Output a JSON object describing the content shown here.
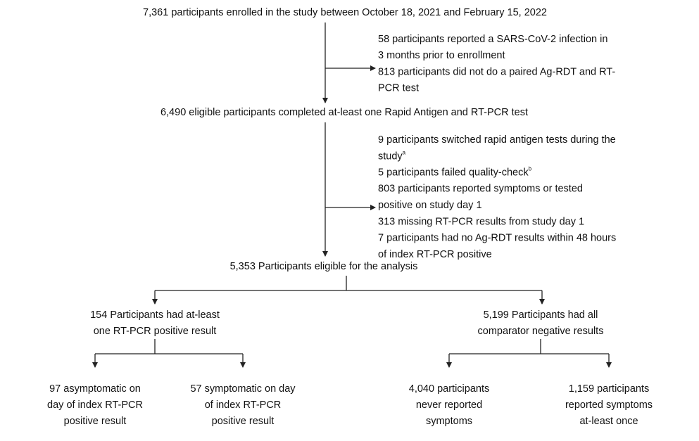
{
  "enrolled": {
    "lines": [
      "7,361 participants enrolled in the study between October 18, 2021 and February 15, 2022"
    ]
  },
  "exclusions_1": {
    "lines": [
      "58 participants reported a SARS-CoV-2 infection in",
      "3 months prior to enrollment",
      "813 participants did not do a paired Ag-RDT and RT-",
      "PCR test"
    ]
  },
  "eligible_tested": {
    "lines": [
      "6,490 eligible participants completed at-least one Rapid Antigen and RT-PCR test"
    ]
  },
  "exclusions_2": {
    "lines": [
      "9 participants switched rapid antigen tests during the",
      "study",
      "5 participants failed quality-check",
      "803 participants reported symptoms or tested",
      "positive on study day 1",
      "313 missing RT-PCR results from study day 1",
      "7 participants had no Ag-RDT results within 48 hours",
      "of index RT-PCR positive"
    ],
    "footnotes": [
      "a",
      "b"
    ]
  },
  "eligible_analysis": {
    "lines": [
      "5,353 Participants eligible for the analysis"
    ]
  },
  "positive": {
    "lines": [
      "154 Participants had at-least",
      "one RT-PCR positive result"
    ]
  },
  "negative": {
    "lines": [
      "5,199 Participants had all",
      "comparator negative results"
    ]
  },
  "asymptomatic": {
    "lines": [
      "97 asymptomatic on",
      "day of index RT-PCR",
      "positive result"
    ]
  },
  "symptomatic": {
    "lines": [
      "57 symptomatic on day",
      "of index RT-PCR",
      "positive result"
    ]
  },
  "never_symptoms": {
    "lines": [
      "4,040 participants",
      "never reported",
      "symptoms"
    ]
  },
  "reported_symptoms": {
    "lines": [
      "1,159 participants",
      "reported symptoms",
      "at-least once"
    ]
  }
}
